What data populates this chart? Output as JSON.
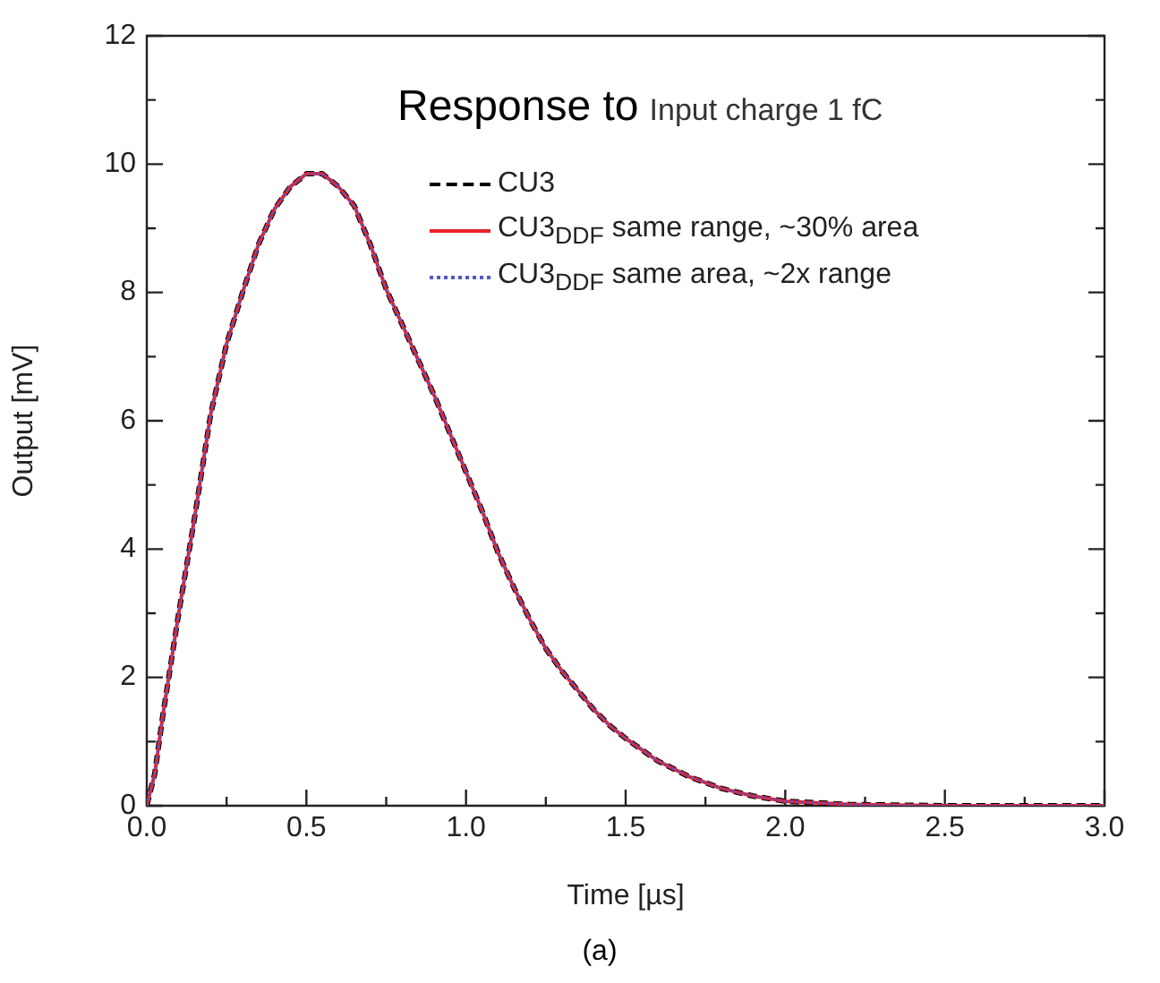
{
  "chart_data": {
    "type": "line",
    "title": "Response to",
    "subtitle": "Input charge 1 fC",
    "xlabel": "Time [µs]",
    "ylabel": "Output [mV]",
    "annotations": [
      "(a)"
    ],
    "x": [
      0,
      0.025,
      0.05,
      0.1,
      0.15,
      0.2,
      0.25,
      0.3,
      0.35,
      0.4,
      0.45,
      0.5,
      0.55,
      0.6,
      0.65,
      0.7,
      0.75,
      0.8,
      0.85,
      0.9,
      0.95,
      1.0,
      1.05,
      1.1,
      1.15,
      1.2,
      1.25,
      1.3,
      1.35,
      1.4,
      1.45,
      1.5,
      1.6,
      1.7,
      1.8,
      1.9,
      2.0,
      2.2,
      2.5,
      3.0
    ],
    "series": [
      {
        "name": "CU3",
        "color": "#000000",
        "line_style": "dashed",
        "values": [
          0,
          0.5,
          1.4,
          3.0,
          4.5,
          6.1,
          7.2,
          8.0,
          8.75,
          9.3,
          9.65,
          9.85,
          9.85,
          9.65,
          9.35,
          8.75,
          8.05,
          7.5,
          6.95,
          6.4,
          5.8,
          5.2,
          4.6,
          3.95,
          3.4,
          2.9,
          2.45,
          2.1,
          1.8,
          1.5,
          1.25,
          1.05,
          0.7,
          0.45,
          0.27,
          0.15,
          0.07,
          0.02,
          0,
          0
        ]
      },
      {
        "name": "CU3$_{DDF}$ same range, ~30% area",
        "color": "#e8212b",
        "line_style": "solid",
        "values": [
          0,
          0.5,
          1.4,
          3.0,
          4.5,
          6.1,
          7.2,
          8.0,
          8.75,
          9.3,
          9.65,
          9.85,
          9.85,
          9.65,
          9.35,
          8.75,
          8.05,
          7.5,
          6.95,
          6.4,
          5.8,
          5.2,
          4.6,
          3.95,
          3.4,
          2.9,
          2.45,
          2.1,
          1.8,
          1.5,
          1.25,
          1.05,
          0.7,
          0.45,
          0.27,
          0.15,
          0.07,
          0.02,
          0,
          0
        ]
      },
      {
        "name": "CU3$_{DDF}$ same area, ~2x range",
        "color": "#5555cc",
        "line_style": "dotted",
        "values": [
          0,
          0.5,
          1.4,
          3.0,
          4.5,
          6.1,
          7.2,
          8.0,
          8.75,
          9.3,
          9.65,
          9.85,
          9.85,
          9.65,
          9.35,
          8.75,
          8.05,
          7.5,
          6.95,
          6.4,
          5.8,
          5.2,
          4.6,
          3.95,
          3.4,
          2.9,
          2.45,
          2.1,
          1.8,
          1.5,
          1.25,
          1.05,
          0.7,
          0.45,
          0.27,
          0.15,
          0.07,
          0.02,
          0,
          0
        ]
      }
    ],
    "xlim": [
      0,
      3
    ],
    "xticks": [
      {
        "value": 0,
        "label": "0.0"
      },
      {
        "value": 0.25,
        "label": null
      },
      {
        "value": 0.5,
        "label": "0.5"
      },
      {
        "value": 0.75,
        "label": null
      },
      {
        "value": 1,
        "label": "1.0"
      },
      {
        "value": 1.25,
        "label": null
      },
      {
        "value": 1.5,
        "label": "1.5"
      },
      {
        "value": 1.75,
        "label": null
      },
      {
        "value": 2,
        "label": "2.0"
      },
      {
        "value": 2.25,
        "label": null
      },
      {
        "value": 2.5,
        "label": "2.5"
      },
      {
        "value": 2.75,
        "label": null
      },
      {
        "value": 3,
        "label": "3.0"
      }
    ],
    "ylim": [
      0,
      12
    ],
    "yticks": [
      0,
      {
        "value": 1,
        "label": null
      },
      2,
      {
        "value": 3,
        "label": null
      },
      4,
      {
        "value": 5,
        "label": null
      },
      6,
      {
        "value": 7,
        "label": null
      },
      8,
      {
        "value": 9,
        "label": null
      },
      10,
      {
        "value": 11,
        "label": null
      },
      12
    ],
    "grid": false,
    "legend": "top right",
    "marker": "none"
  }
}
